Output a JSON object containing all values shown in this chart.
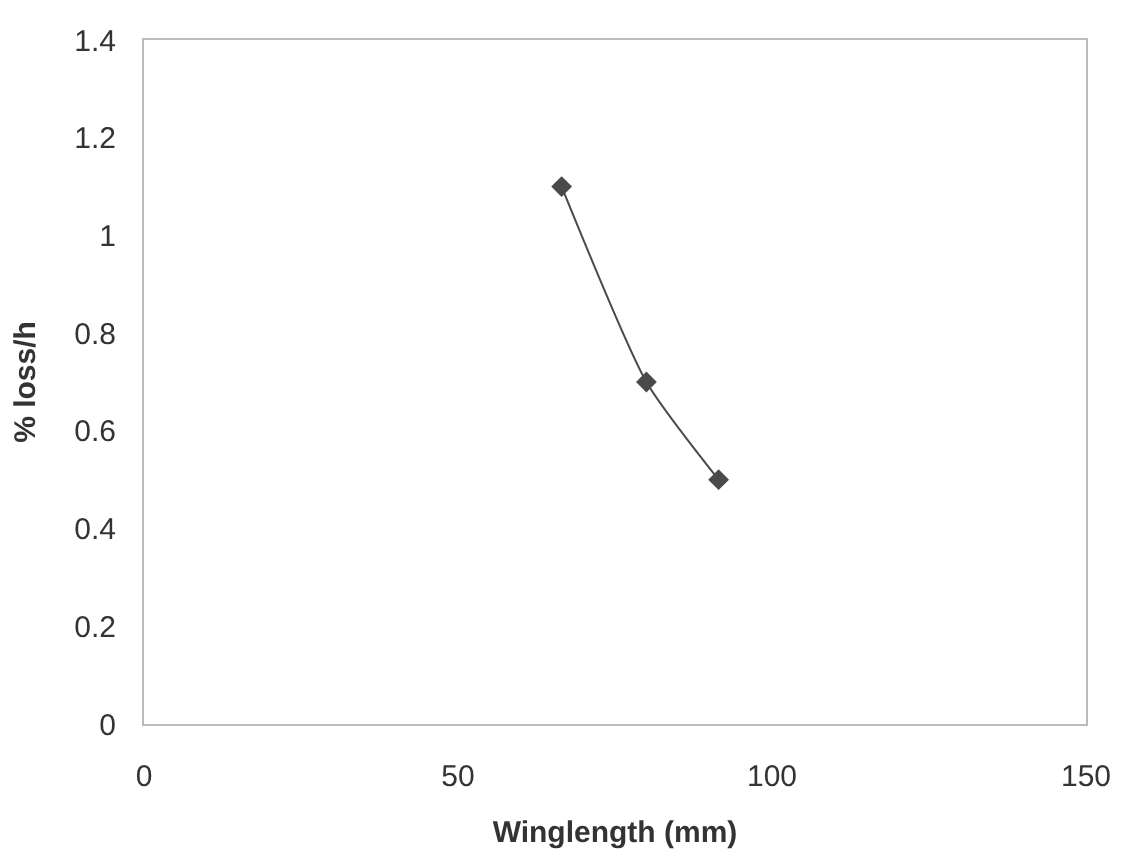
{
  "chart_data": {
    "type": "line",
    "xlabel": "Winglength (mm)",
    "ylabel": "% loss/h",
    "x": [
      66.5,
      80,
      91.5
    ],
    "series": [
      {
        "color": "#4a4a4a",
        "values": [
          1.1,
          0.7,
          0.5
        ]
      }
    ],
    "xlim": [
      0,
      150
    ],
    "xticks": [
      0,
      50,
      100,
      150
    ],
    "ylim": [
      0,
      1.4
    ],
    "yticks": [
      0,
      0.2,
      0.4,
      0.6,
      0.8,
      1,
      1.2,
      1.4
    ],
    "marker": "diamond",
    "line_style": "solid"
  }
}
